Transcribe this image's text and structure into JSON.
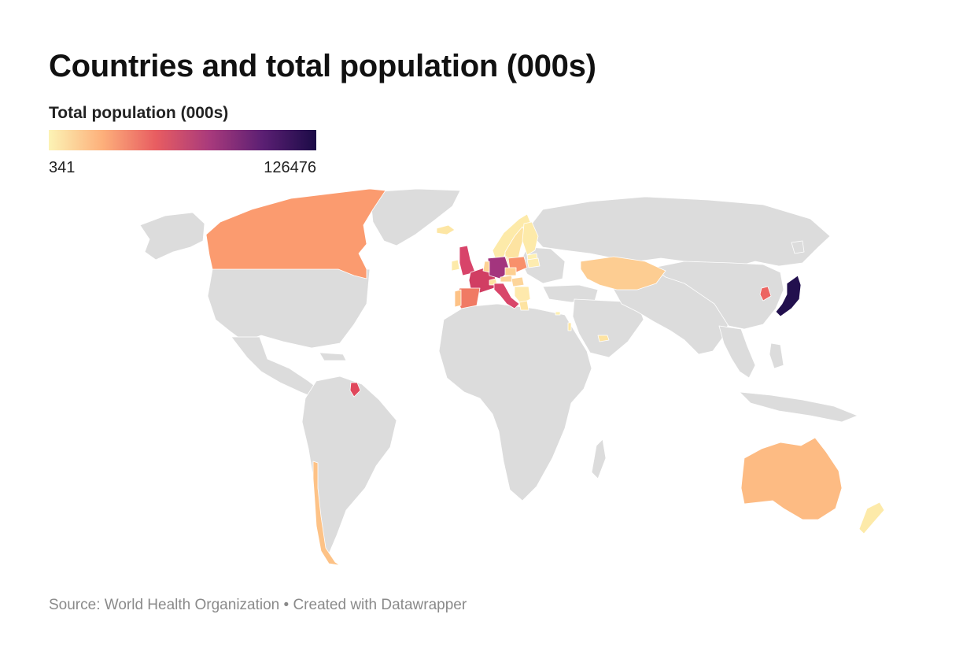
{
  "title": "Countries and total population (000s)",
  "legend": {
    "title": "Total population (000s)",
    "min_label": "341",
    "max_label": "126476",
    "colors": [
      "#fcf3b5",
      "#fdb07b",
      "#e85d61",
      "#a93a7c",
      "#5b1f73",
      "#1b0b47"
    ]
  },
  "source": "Source: World Health Organization • Created with Datawrapper",
  "map": {
    "no_data_color": "#dcdcdc",
    "border_color": "#ffffff",
    "regions": [
      {
        "name": "Canada",
        "color": "#fb9b6f"
      },
      {
        "name": "Chile",
        "color": "#fdc286"
      },
      {
        "name": "French Guiana",
        "color": "#e0475b"
      },
      {
        "name": "Iceland",
        "color": "#fde6a4"
      },
      {
        "name": "Norway",
        "color": "#fdeaa9"
      },
      {
        "name": "Sweden",
        "color": "#fde3a1"
      },
      {
        "name": "Finland",
        "color": "#fdeaa9"
      },
      {
        "name": "Baltic States",
        "color": "#fef0b3"
      },
      {
        "name": "Denmark",
        "color": "#fdeaa9"
      },
      {
        "name": "Ireland",
        "color": "#fdeaa9"
      },
      {
        "name": "United Kingdom",
        "color": "#d8446a"
      },
      {
        "name": "France",
        "color": "#d13e63"
      },
      {
        "name": "Germany",
        "color": "#a3357e"
      },
      {
        "name": "Benelux",
        "color": "#fdd295"
      },
      {
        "name": "Switzerland",
        "color": "#fde3a1"
      },
      {
        "name": "Austria",
        "color": "#fdd59a"
      },
      {
        "name": "Poland",
        "color": "#f8906b"
      },
      {
        "name": "Czechia",
        "color": "#fdd092"
      },
      {
        "name": "Hungary",
        "color": "#fdd59a"
      },
      {
        "name": "Balkans",
        "color": "#fee9ac"
      },
      {
        "name": "Belarus",
        "color": "#fdecb0"
      },
      {
        "name": "Spain",
        "color": "#f07a64"
      },
      {
        "name": "Portugal",
        "color": "#fdc286"
      },
      {
        "name": "Italy",
        "color": "#d9466a"
      },
      {
        "name": "Greece",
        "color": "#fde3a1"
      },
      {
        "name": "Cyprus",
        "color": "#fef0b3"
      },
      {
        "name": "Israel",
        "color": "#fde6a4"
      },
      {
        "name": "United Arab Emirates",
        "color": "#fde3a1"
      },
      {
        "name": "Kazakhstan",
        "color": "#fdcd92"
      },
      {
        "name": "South Korea",
        "color": "#ec6461"
      },
      {
        "name": "Japan",
        "color": "#22104e"
      },
      {
        "name": "Australia",
        "color": "#fdbb83"
      },
      {
        "name": "New Zealand",
        "color": "#fdeaa9"
      }
    ]
  }
}
